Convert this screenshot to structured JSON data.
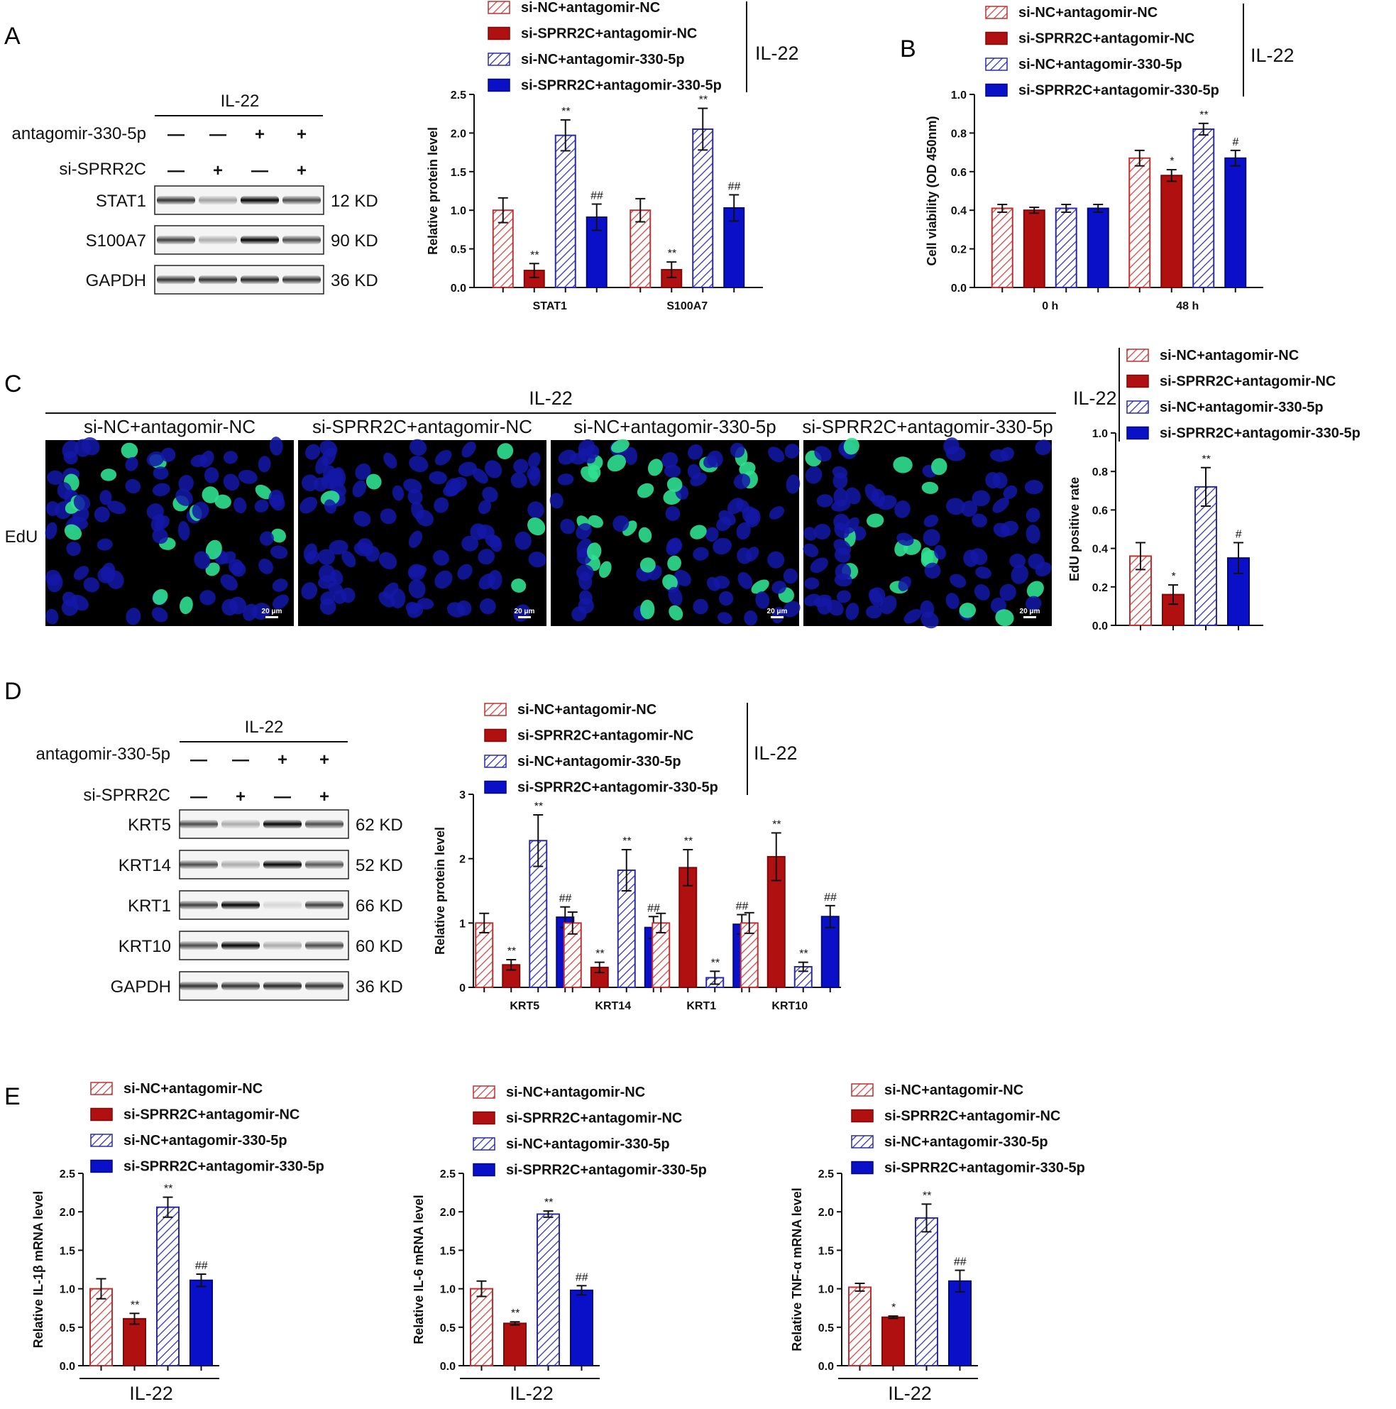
{
  "panels": {
    "a": "A",
    "b": "B",
    "c": "C",
    "d": "D",
    "e": "E"
  },
  "common": {
    "il22": "IL-22",
    "antagomir_label": "antagomir-330-5p",
    "si_label": "si-SPRR2C",
    "minus": "—",
    "plus": "+",
    "scale_bar": "20 μm",
    "edu": "EdU"
  },
  "legend": [
    "si-NC+antagomir-NC",
    "si-SPRR2C+antagomir-NC",
    "si-NC+antagomir-330-5p",
    "si-SPRR2C+antagomir-330-5p"
  ],
  "colors": {
    "g1": "#e06060",
    "g2": "#b01010",
    "g3": "#4040c8",
    "g4": "#0a10c8",
    "edu_green": "#30e090",
    "nucleus": "#1418a8"
  },
  "blotA": {
    "antagomir": [
      "—",
      "—",
      "+",
      "+"
    ],
    "si": [
      "—",
      "+",
      "—",
      "+"
    ],
    "rows": [
      {
        "name": "STAT1",
        "size": "12 KD"
      },
      {
        "name": "S100A7",
        "size": "90 KD"
      },
      {
        "name": "GAPDH",
        "size": "36 KD"
      }
    ]
  },
  "blotD": {
    "antagomir": [
      "—",
      "—",
      "+",
      "+"
    ],
    "si": [
      "—",
      "+",
      "—",
      "+"
    ],
    "rows": [
      {
        "name": "KRT5",
        "size": "62 KD"
      },
      {
        "name": "KRT14",
        "size": "52 KD"
      },
      {
        "name": "KRT1",
        "size": "66 KD"
      },
      {
        "name": "KRT10",
        "size": "60 KD"
      },
      {
        "name": "GAPDH",
        "size": "36 KD"
      }
    ]
  },
  "micro_labels": [
    "si-NC+antagomir-NC",
    "si-SPRR2C+antagomir-NC",
    "si-NC+antagomir-330-5p",
    "si-SPRR2C+antagomir-330-5p"
  ],
  "chart_data": [
    {
      "id": "A",
      "type": "bar",
      "ylabel": "Relative protein level",
      "ylim": [
        0,
        2.5
      ],
      "ticks": [
        "0.0",
        "0.5",
        "1.0",
        "1.5",
        "2.0",
        "2.5"
      ],
      "categories": [
        "STAT1",
        "S100A7"
      ],
      "series": [
        {
          "name": "si-NC+antagomir-NC",
          "values": [
            1.0,
            1.0
          ],
          "errors": [
            0.16,
            0.15
          ],
          "sig": [
            "",
            ""
          ]
        },
        {
          "name": "si-SPRR2C+antagomir-NC",
          "values": [
            0.22,
            0.23
          ],
          "errors": [
            0.09,
            0.1
          ],
          "sig": [
            "**",
            "**"
          ]
        },
        {
          "name": "si-NC+antagomir-330-5p",
          "values": [
            1.97,
            2.05
          ],
          "errors": [
            0.2,
            0.27
          ],
          "sig": [
            "**",
            "**"
          ]
        },
        {
          "name": "si-SPRR2C+antagomir-330-5p",
          "values": [
            0.91,
            1.03
          ],
          "errors": [
            0.17,
            0.17
          ],
          "sig": [
            "##",
            "##"
          ]
        }
      ]
    },
    {
      "id": "B",
      "type": "bar",
      "ylabel": "Cell viability (OD 450nm)",
      "ylim": [
        0,
        1.0
      ],
      "ticks": [
        "0.0",
        "0.2",
        "0.4",
        "0.6",
        "0.8",
        "1.0"
      ],
      "categories": [
        "0 h",
        "48 h"
      ],
      "series": [
        {
          "name": "si-NC+antagomir-NC",
          "values": [
            0.41,
            0.67
          ],
          "errors": [
            0.02,
            0.04
          ],
          "sig": [
            "",
            ""
          ]
        },
        {
          "name": "si-SPRR2C+antagomir-NC",
          "values": [
            0.4,
            0.58
          ],
          "errors": [
            0.015,
            0.03
          ],
          "sig": [
            "",
            "*"
          ]
        },
        {
          "name": "si-NC+antagomir-330-5p",
          "values": [
            0.41,
            0.82
          ],
          "errors": [
            0.02,
            0.03
          ],
          "sig": [
            "",
            "**"
          ]
        },
        {
          "name": "si-SPRR2C+antagomir-330-5p",
          "values": [
            0.41,
            0.67
          ],
          "errors": [
            0.02,
            0.04
          ],
          "sig": [
            "",
            "#"
          ]
        }
      ]
    },
    {
      "id": "C",
      "type": "bar",
      "ylabel": "EdU positive rate",
      "ylim": [
        0,
        1.0
      ],
      "ticks": [
        "0.0",
        "0.2",
        "0.4",
        "0.6",
        "0.8",
        "1.0"
      ],
      "categories": [
        ""
      ],
      "series": [
        {
          "name": "si-NC+antagomir-NC",
          "values": [
            0.36
          ],
          "errors": [
            0.07
          ],
          "sig": [
            ""
          ]
        },
        {
          "name": "si-SPRR2C+antagomir-NC",
          "values": [
            0.16
          ],
          "errors": [
            0.05
          ],
          "sig": [
            "*"
          ]
        },
        {
          "name": "si-NC+antagomir-330-5p",
          "values": [
            0.72
          ],
          "errors": [
            0.1
          ],
          "sig": [
            "**"
          ]
        },
        {
          "name": "si-SPRR2C+antagomir-330-5p",
          "values": [
            0.35
          ],
          "errors": [
            0.08
          ],
          "sig": [
            "#"
          ]
        }
      ]
    },
    {
      "id": "D",
      "type": "bar",
      "ylabel": "Relative protein level",
      "ylim": [
        0,
        3
      ],
      "ticks": [
        "0",
        "1",
        "2",
        "3"
      ],
      "categories": [
        "KRT5",
        "KRT14",
        "KRT1",
        "KRT10"
      ],
      "series": [
        {
          "name": "si-NC+antagomir-NC",
          "values": [
            1.0,
            1.0,
            1.0,
            1.0
          ],
          "errors": [
            0.15,
            0.17,
            0.15,
            0.16
          ],
          "sig": [
            "",
            "",
            "",
            ""
          ]
        },
        {
          "name": "si-SPRR2C+antagomir-NC",
          "values": [
            0.35,
            0.31,
            1.86,
            2.03
          ],
          "errors": [
            0.08,
            0.08,
            0.28,
            0.37
          ],
          "sig": [
            "**",
            "**",
            "**",
            "**"
          ]
        },
        {
          "name": "si-NC+antagomir-330-5p",
          "values": [
            2.28,
            1.82,
            0.15,
            0.32
          ],
          "errors": [
            0.4,
            0.32,
            0.1,
            0.07
          ],
          "sig": [
            "**",
            "**",
            "**",
            "**"
          ]
        },
        {
          "name": "si-SPRR2C+antagomir-330-5p",
          "values": [
            1.09,
            0.93,
            0.98,
            1.1
          ],
          "errors": [
            0.16,
            0.17,
            0.15,
            0.17
          ],
          "sig": [
            "##",
            "##",
            "##",
            "##"
          ]
        }
      ]
    },
    {
      "id": "E1",
      "type": "bar",
      "ylabel": "Relative IL-1β mRNA level",
      "xlabel": "IL-22",
      "ylim": [
        0,
        2.5
      ],
      "ticks": [
        "0.0",
        "0.5",
        "1.0",
        "1.5",
        "2.0",
        "2.5"
      ],
      "categories": [
        ""
      ],
      "series": [
        {
          "name": "si-NC+antagomir-NC",
          "values": [
            1.0
          ],
          "errors": [
            0.13
          ],
          "sig": [
            ""
          ]
        },
        {
          "name": "si-SPRR2C+antagomir-NC",
          "values": [
            0.61
          ],
          "errors": [
            0.07
          ],
          "sig": [
            "**"
          ]
        },
        {
          "name": "si-NC+antagomir-330-5p",
          "values": [
            2.06
          ],
          "errors": [
            0.13
          ],
          "sig": [
            "**"
          ]
        },
        {
          "name": "si-SPRR2C+antagomir-330-5p",
          "values": [
            1.11
          ],
          "errors": [
            0.08
          ],
          "sig": [
            "##"
          ]
        }
      ]
    },
    {
      "id": "E2",
      "type": "bar",
      "ylabel": "Relative IL-6 mRNA level",
      "xlabel": "IL-22",
      "ylim": [
        0,
        2.5
      ],
      "ticks": [
        "0.0",
        "0.5",
        "1.0",
        "1.5",
        "2.0",
        "2.5"
      ],
      "categories": [
        ""
      ],
      "series": [
        {
          "name": "si-NC+antagomir-NC",
          "values": [
            1.0
          ],
          "errors": [
            0.1
          ],
          "sig": [
            ""
          ]
        },
        {
          "name": "si-SPRR2C+antagomir-NC",
          "values": [
            0.55
          ],
          "errors": [
            0.02
          ],
          "sig": [
            "**"
          ]
        },
        {
          "name": "si-NC+antagomir-330-5p",
          "values": [
            1.97
          ],
          "errors": [
            0.04
          ],
          "sig": [
            "**"
          ]
        },
        {
          "name": "si-SPRR2C+antagomir-330-5p",
          "values": [
            0.98
          ],
          "errors": [
            0.06
          ],
          "sig": [
            "##"
          ]
        }
      ]
    },
    {
      "id": "E3",
      "type": "bar",
      "ylabel": "Relative TNF-α mRNA level",
      "xlabel": "IL-22",
      "ylim": [
        0,
        2.5
      ],
      "ticks": [
        "0.0",
        "0.5",
        "1.0",
        "1.5",
        "2.0",
        "2.5"
      ],
      "categories": [
        ""
      ],
      "series": [
        {
          "name": "si-NC+antagomir-NC",
          "values": [
            1.02
          ],
          "errors": [
            0.05
          ],
          "sig": [
            ""
          ]
        },
        {
          "name": "si-SPRR2C+antagomir-NC",
          "values": [
            0.63
          ],
          "errors": [
            0.015
          ],
          "sig": [
            "*"
          ]
        },
        {
          "name": "si-NC+antagomir-330-5p",
          "values": [
            1.92
          ],
          "errors": [
            0.18
          ],
          "sig": [
            "**"
          ]
        },
        {
          "name": "si-SPRR2C+antagomir-330-5p",
          "values": [
            1.1
          ],
          "errors": [
            0.14
          ],
          "sig": [
            "##"
          ]
        }
      ]
    }
  ]
}
